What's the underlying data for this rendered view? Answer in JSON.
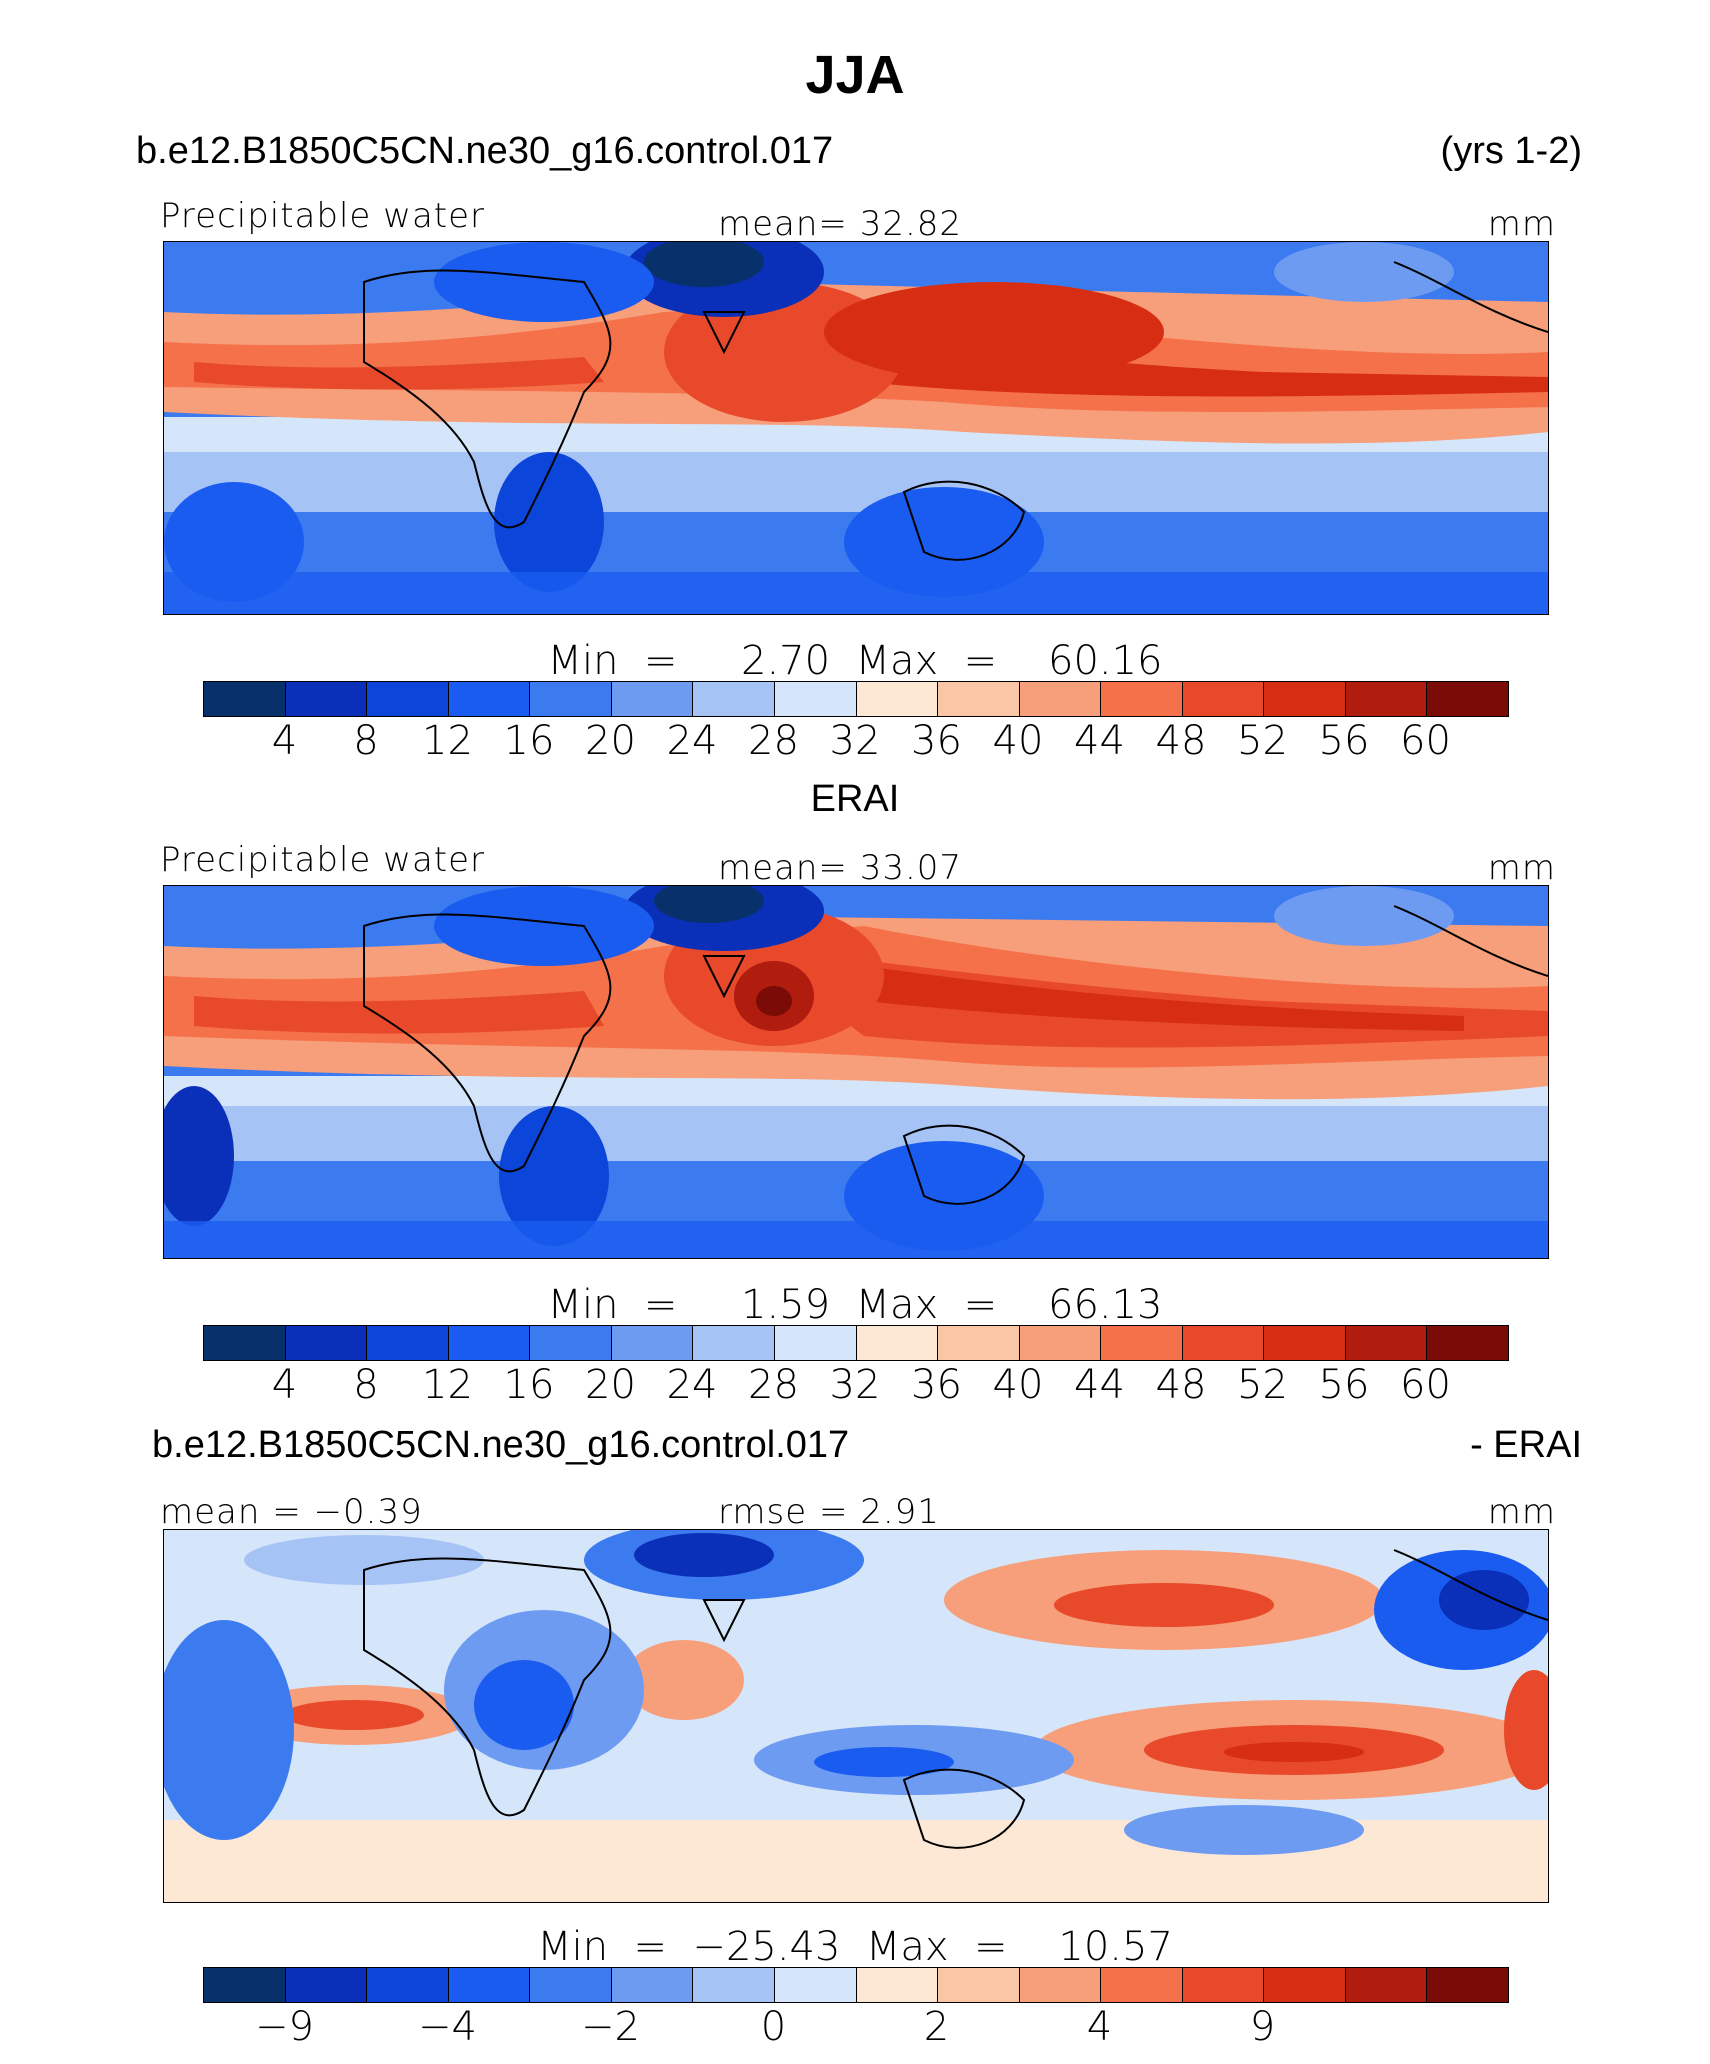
{
  "title": "JJA",
  "colors": [
    "#08306b",
    "#0a2fb8",
    "#0b45d9",
    "#1a5cf0",
    "#3c7af0",
    "#6e9bf2",
    "#a6c3f6",
    "#d6e6fa",
    "#fde8d6",
    "#fbc6a6",
    "#f79e7a",
    "#f4714a",
    "#e8492a",
    "#d62d13",
    "#b01c0d",
    "#7a0b06"
  ],
  "panel1": {
    "case_label": "b.e12.B1850C5CN.ne30_g16.control.017",
    "years": "(yrs 1-2)",
    "variable": "Precipitable water",
    "mean": "mean=   32.82",
    "units": "mm",
    "minmax": "Min  =     2.70  Max  =    60.16",
    "ticks": [
      "4",
      "8",
      "12",
      "16",
      "20",
      "24",
      "28",
      "32",
      "36",
      "40",
      "44",
      "48",
      "52",
      "56",
      "60"
    ]
  },
  "panel2": {
    "case_label": "ERAI",
    "variable": "Precipitable water",
    "mean": "mean=   33.07",
    "units": "mm",
    "minmax": "Min  =     1.59  Max  =    66.13",
    "ticks": [
      "4",
      "8",
      "12",
      "16",
      "20",
      "24",
      "28",
      "32",
      "36",
      "40",
      "44",
      "48",
      "52",
      "56",
      "60"
    ]
  },
  "panel3": {
    "case_label": "b.e12.B1850C5CN.ne30_g16.control.017",
    "minus_label": "- ERAI",
    "mean": "mean  =   −0.39",
    "rmse": "rmse  =     2.91",
    "units": "mm",
    "minmax": "Min  =  −25.43  Max  =    10.57",
    "ticks": [
      "−9",
      "−4",
      "−2",
      "0",
      "2",
      "4",
      "9"
    ]
  }
}
